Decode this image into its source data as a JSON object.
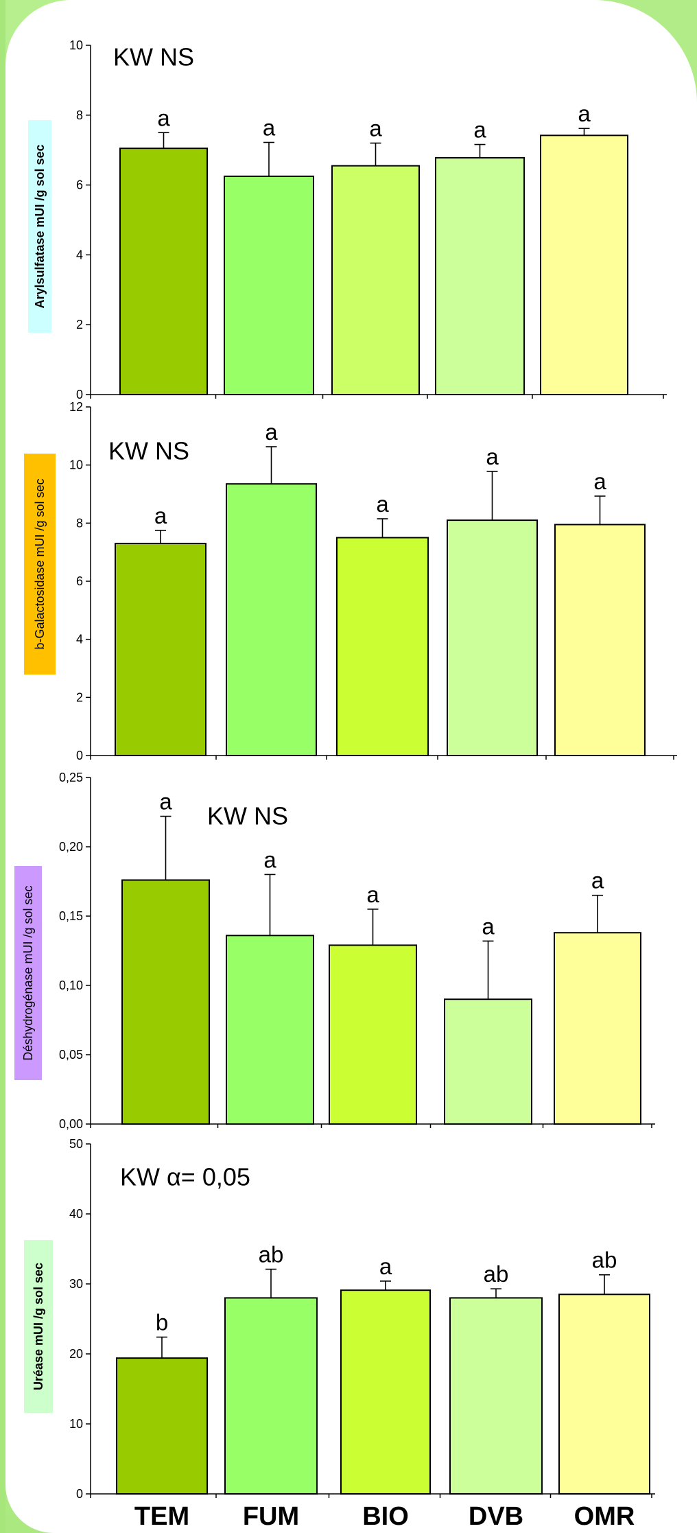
{
  "categories": [
    "TEM",
    "FUM",
    "BIO",
    "DVB",
    "OMR"
  ],
  "chart_data": [
    {
      "type": "bar",
      "ylabel": "Arylsulfatase mUI /g sol sec",
      "ylabel_bg": "#ccffff",
      "annotation": "KW NS",
      "ylim": [
        0,
        10
      ],
      "yticks": [
        "0",
        "2",
        "4",
        "6",
        "8",
        "10"
      ],
      "values": [
        7.05,
        6.25,
        6.55,
        6.78,
        7.42
      ],
      "errors": [
        0.45,
        0.97,
        0.65,
        0.38,
        0.2
      ],
      "letters": [
        "a",
        "a",
        "a",
        "a",
        "a"
      ],
      "colors": [
        "#99cc00",
        "#99ff66",
        "#ccff66",
        "#ccff99",
        "#ffff99"
      ]
    },
    {
      "type": "bar",
      "ylabel": "b-Galactosidase mUI /g sol sec",
      "ylabel_bg": "#ffc000",
      "annotation": "KW NS",
      "ylim": [
        0,
        12
      ],
      "yticks": [
        "0",
        "2",
        "4",
        "6",
        "8",
        "10",
        "12"
      ],
      "values": [
        7.3,
        9.35,
        7.5,
        8.1,
        7.95
      ],
      "errors": [
        0.45,
        1.28,
        0.65,
        1.68,
        0.98
      ],
      "letters": [
        "a",
        "a",
        "a",
        "a",
        "a"
      ],
      "colors": [
        "#99cc00",
        "#99ff66",
        "#ccff33",
        "#ccff99",
        "#ffff99"
      ]
    },
    {
      "type": "bar",
      "ylabel": "Déshydrogénase mUI /g sol sec",
      "ylabel_bg": "#cc99ff",
      "annotation": "KW NS",
      "ylim": [
        0,
        0.25
      ],
      "yticks": [
        "0,00",
        "0,05",
        "0,10",
        "0,15",
        "0,20",
        "0,25"
      ],
      "values": [
        0.176,
        0.136,
        0.129,
        0.09,
        0.138
      ],
      "errors": [
        0.046,
        0.044,
        0.026,
        0.042,
        0.027
      ],
      "letters": [
        "a",
        "a",
        "a",
        "a",
        "a"
      ],
      "colors": [
        "#99cc00",
        "#99ff66",
        "#ccff33",
        "#ccff99",
        "#ffff99"
      ]
    },
    {
      "type": "bar",
      "ylabel": "Uréase mUI /g sol sec",
      "ylabel_bg": "#ccffcc",
      "annotation": "KW α= 0,05",
      "ylim": [
        0,
        50
      ],
      "yticks": [
        "0",
        "10",
        "20",
        "30",
        "40",
        "50"
      ],
      "values": [
        19.4,
        28.0,
        29.1,
        28.0,
        28.5
      ],
      "errors": [
        3.0,
        4.1,
        1.3,
        1.3,
        2.8
      ],
      "letters": [
        "b",
        "ab",
        "a",
        "ab",
        "ab"
      ],
      "colors": [
        "#99cc00",
        "#99ff66",
        "#ccff33",
        "#ccff99",
        "#ffff99"
      ]
    }
  ]
}
